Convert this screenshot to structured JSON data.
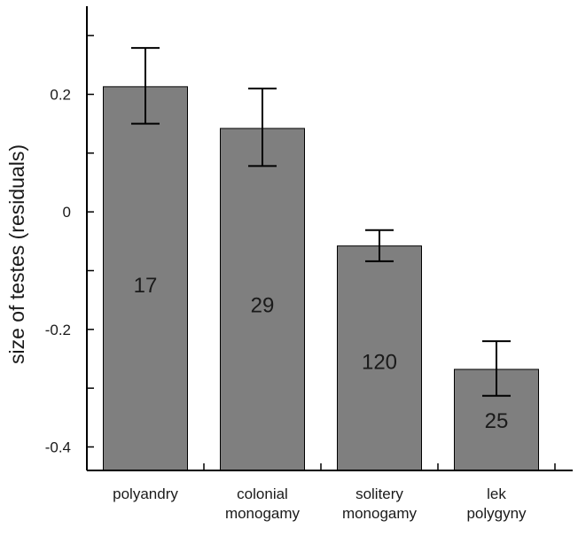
{
  "chart_data": {
    "type": "bar",
    "ylabel": "size of testes (residuals)",
    "categories": [
      [
        "polyandry"
      ],
      [
        "colonial",
        "monogamy"
      ],
      [
        "solitery",
        "monogamy"
      ],
      [
        "lek",
        "polygyny"
      ]
    ],
    "values": [
      0.213,
      0.142,
      -0.058,
      -0.268
    ],
    "error_low": [
      0.15,
      0.078,
      -0.084,
      -0.313
    ],
    "error_high": [
      0.279,
      0.21,
      -0.031,
      -0.22
    ],
    "sample_sizes": [
      "17",
      "29",
      "120",
      "25"
    ],
    "ylim": [
      -0.44,
      0.35
    ],
    "yticks": [
      {
        "value": 0.2,
        "label": "0.2"
      },
      {
        "value": 0,
        "label": "0"
      },
      {
        "value": -0.2,
        "label": "-0.2"
      },
      {
        "value": -0.4,
        "label": "-0.4"
      }
    ],
    "minor_yticks": [
      0.3,
      0.1,
      -0.1,
      -0.3
    ],
    "grid": false,
    "bar_color": "#7f7f7f",
    "line_color": "#000000"
  }
}
